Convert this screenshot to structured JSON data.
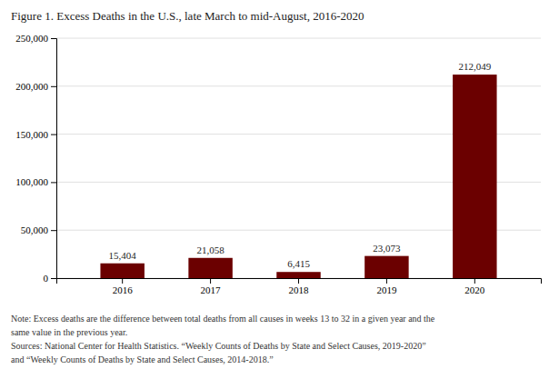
{
  "chart_data": {
    "type": "bar",
    "title": "Figure 1. Excess Deaths in the U.S., late March to mid-August, 2016-2020",
    "categories": [
      "2016",
      "2017",
      "2018",
      "2019",
      "2020"
    ],
    "values": [
      15404,
      21058,
      6415,
      23073,
      212049
    ],
    "value_labels": [
      "15,404",
      "21,058",
      "6,415",
      "23,073",
      "212,049"
    ],
    "data_labels": true,
    "color": "#6B0000",
    "ylim": [
      0,
      250000
    ],
    "yticks": [
      0,
      {
        "value": 50000,
        "label": "50,000"
      },
      {
        "value": 100000,
        "label": "100,000"
      },
      {
        "value": 150000,
        "label": "150,000"
      },
      {
        "value": 200000,
        "label": "200,000"
      },
      {
        "value": 250000,
        "label": "250,000"
      }
    ],
    "grid": true,
    "annotations": [
      "Note: Excess deaths are the difference between total deaths from all causes in weeks 13 to 32 in a given year and the",
      "same value in the previous year.",
      "Sources: National Center for Health Statistics. “Weekly Counts of Deaths by State and Select Causes, 2019-2020”",
      "and “Weekly Counts of Deaths by State and Select Causes, 2014-2018.”"
    ]
  }
}
